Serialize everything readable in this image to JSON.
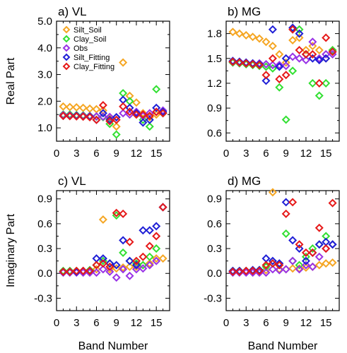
{
  "colors": {
    "Silt_Soil": "#f5a623",
    "Clay_Soil": "#33e033",
    "Obs": "#9933e6",
    "Silt_Fitting": "#1f1fd6",
    "Clay_Fitting": "#e61919"
  },
  "legend": [
    "Silt_Soil",
    "Clay_Soil",
    "Obs",
    "Silt_Fitting",
    "Clay_Fitting"
  ],
  "chart_data": [
    {
      "id": "a",
      "type": "scatter",
      "title": "a) VL",
      "xlabel": "",
      "ylabel": "Real Part",
      "xlim": [
        0,
        17
      ],
      "ylim": [
        0.5,
        5.0
      ],
      "xticks": [
        0,
        3,
        6,
        9,
        12,
        15
      ],
      "yticks": [
        1.0,
        2.0,
        3.0,
        4.0,
        5.0
      ],
      "ytick_labels": [
        "1.0",
        "2.0",
        "3.0",
        "4.0",
        "5.0"
      ],
      "series": [
        {
          "name": "Silt_Soil",
          "x": [
            1,
            2,
            3,
            4,
            5,
            6,
            7,
            8,
            9,
            10,
            11,
            12,
            13,
            14,
            15,
            16
          ],
          "y": [
            1.8,
            1.78,
            1.77,
            1.75,
            1.72,
            1.7,
            1.65,
            1.35,
            1.05,
            3.45,
            2.2,
            1.95,
            1.55,
            1.4,
            1.5,
            1.55
          ]
        },
        {
          "name": "Clay_Soil",
          "x": [
            1,
            2,
            3,
            4,
            5,
            6,
            7,
            8,
            9,
            10,
            11,
            12,
            13,
            14,
            15,
            16
          ],
          "y": [
            1.5,
            1.5,
            1.48,
            1.47,
            1.45,
            1.42,
            1.4,
            1.15,
            0.75,
            2.3,
            2.0,
            1.5,
            1.3,
            1.05,
            2.45,
            1.55
          ]
        },
        {
          "name": "Obs",
          "x": [
            1,
            2,
            3,
            4,
            5,
            6,
            7,
            8,
            9,
            10,
            11,
            12,
            13,
            14,
            15,
            16
          ],
          "y": [
            1.48,
            1.47,
            1.46,
            1.45,
            1.44,
            1.43,
            1.42,
            1.41,
            1.4,
            1.55,
            1.5,
            1.6,
            1.45,
            1.55,
            1.6,
            1.65
          ]
        },
        {
          "name": "Silt_Fitting",
          "x": [
            1,
            2,
            3,
            4,
            5,
            6,
            7,
            8,
            9,
            10,
            11,
            12,
            13,
            14,
            15,
            16
          ],
          "y": [
            1.45,
            1.45,
            1.45,
            1.43,
            1.42,
            1.3,
            1.55,
            1.3,
            1.4,
            2.05,
            1.75,
            1.55,
            1.2,
            1.3,
            1.75,
            1.6
          ]
        },
        {
          "name": "Clay_Fitting",
          "x": [
            1,
            2,
            3,
            4,
            5,
            6,
            7,
            8,
            9,
            10,
            11,
            12,
            13,
            14,
            15,
            16
          ],
          "y": [
            1.45,
            1.44,
            1.43,
            1.42,
            1.4,
            1.3,
            1.85,
            1.25,
            1.3,
            1.8,
            1.6,
            1.5,
            1.5,
            1.45,
            1.6,
            1.55
          ]
        }
      ]
    },
    {
      "id": "b",
      "type": "scatter",
      "title": "b) MG",
      "xlabel": "",
      "ylabel": "",
      "xlim": [
        0,
        17
      ],
      "ylim": [
        0.5,
        1.95
      ],
      "xticks": [
        0,
        3,
        6,
        9,
        12,
        15
      ],
      "yticks": [
        0.6,
        0.9,
        1.2,
        1.5,
        1.8
      ],
      "ytick_labels": [
        "0.6",
        "0.9",
        "1.2",
        "1.5",
        "1.8"
      ],
      "series": [
        {
          "name": "Silt_Soil",
          "x": [
            1,
            2,
            3,
            4,
            5,
            6,
            7,
            8,
            9,
            10,
            11,
            12,
            13,
            14,
            15,
            16
          ],
          "y": [
            1.82,
            1.8,
            1.78,
            1.76,
            1.74,
            1.7,
            1.65,
            1.55,
            1.45,
            1.72,
            1.75,
            1.6,
            1.65,
            1.6,
            1.5,
            1.6
          ]
        },
        {
          "name": "Clay_Soil",
          "x": [
            1,
            2,
            3,
            4,
            5,
            6,
            7,
            8,
            9,
            10,
            11,
            12,
            13,
            14,
            15,
            16
          ],
          "y": [
            1.45,
            1.44,
            1.43,
            1.42,
            1.41,
            1.4,
            1.38,
            1.15,
            0.76,
            1.35,
            1.85,
            1.55,
            1.2,
            1.05,
            1.2,
            1.6
          ]
        },
        {
          "name": "Obs",
          "x": [
            1,
            2,
            3,
            4,
            5,
            6,
            7,
            8,
            9,
            10,
            11,
            12,
            13,
            14,
            15,
            16
          ],
          "y": [
            1.46,
            1.45,
            1.45,
            1.44,
            1.44,
            1.43,
            1.42,
            1.42,
            1.41,
            1.52,
            1.5,
            1.48,
            1.7,
            1.5,
            1.55,
            1.55
          ]
        },
        {
          "name": "Silt_Fitting",
          "x": [
            1,
            2,
            3,
            4,
            5,
            6,
            7,
            8,
            9,
            10,
            11,
            12,
            13,
            14,
            15,
            16
          ],
          "y": [
            1.47,
            1.46,
            1.45,
            1.44,
            1.43,
            1.23,
            1.85,
            1.4,
            1.5,
            1.87,
            1.8,
            1.55,
            1.5,
            1.48,
            1.5,
            1.58
          ]
        },
        {
          "name": "Clay_Fitting",
          "x": [
            1,
            2,
            3,
            4,
            5,
            6,
            7,
            8,
            9,
            10,
            11,
            12,
            13,
            14,
            15,
            16
          ],
          "y": [
            1.46,
            1.45,
            1.44,
            1.43,
            1.42,
            1.3,
            1.5,
            1.25,
            1.3,
            1.85,
            1.6,
            1.55,
            1.55,
            1.2,
            1.75,
            1.58
          ]
        }
      ]
    },
    {
      "id": "c",
      "type": "scatter",
      "title": "c) VL",
      "xlabel": "Band Number",
      "ylabel": "Imaginary Part",
      "xlim": [
        0,
        17
      ],
      "ylim": [
        -0.45,
        1.0
      ],
      "xticks": [
        0,
        3,
        6,
        9,
        12,
        15
      ],
      "yticks": [
        -0.3,
        0.0,
        0.3,
        0.6,
        0.9
      ],
      "ytick_labels": [
        "-0.3",
        "0.0",
        "0.3",
        "0.6",
        "0.9"
      ],
      "series": [
        {
          "name": "Silt_Soil",
          "x": [
            1,
            2,
            3,
            4,
            5,
            6,
            7,
            8,
            9,
            10,
            11,
            12,
            13,
            14,
            15,
            16
          ],
          "y": [
            0.02,
            0.02,
            0.02,
            0.02,
            0.03,
            0.05,
            0.65,
            0.05,
            0.06,
            0.07,
            0.08,
            0.08,
            0.1,
            0.12,
            0.18,
            0.18
          ]
        },
        {
          "name": "Clay_Soil",
          "x": [
            1,
            2,
            3,
            4,
            5,
            6,
            7,
            8,
            9,
            10,
            11,
            12,
            13,
            14,
            15,
            16
          ],
          "y": [
            0.03,
            0.03,
            0.03,
            0.03,
            0.04,
            0.1,
            0.15,
            0.12,
            0.7,
            0.25,
            0.15,
            0.12,
            0.1,
            0.2,
            0.3,
            0.8
          ]
        },
        {
          "name": "Obs",
          "x": [
            1,
            2,
            3,
            4,
            5,
            6,
            7,
            8,
            9,
            10,
            11,
            12,
            13,
            14,
            15,
            16
          ],
          "y": [
            0.01,
            0.01,
            0.01,
            0.01,
            0.01,
            0.01,
            0.05,
            0.02,
            -0.05,
            0.05,
            -0.03,
            0.05,
            0.06,
            0.1,
            0.15,
            0.8
          ]
        },
        {
          "name": "Silt_Fitting",
          "x": [
            1,
            2,
            3,
            4,
            5,
            6,
            7,
            8,
            9,
            10,
            11,
            12,
            13,
            14,
            15,
            16
          ],
          "y": [
            0.02,
            0.02,
            0.02,
            0.03,
            0.03,
            0.18,
            0.18,
            0.12,
            0.1,
            0.4,
            0.15,
            0.1,
            0.52,
            0.52,
            0.57,
            0.8
          ]
        },
        {
          "name": "Clay_Fitting",
          "x": [
            1,
            2,
            3,
            4,
            5,
            6,
            7,
            8,
            9,
            10,
            11,
            12,
            13,
            14,
            15,
            16
          ],
          "y": [
            0.02,
            0.02,
            0.03,
            0.03,
            0.03,
            0.1,
            0.12,
            0.08,
            0.73,
            0.72,
            0.38,
            0.15,
            0.2,
            0.33,
            0.45,
            0.8
          ]
        }
      ]
    },
    {
      "id": "d",
      "type": "scatter",
      "title": "d) MG",
      "xlabel": "Band Number",
      "ylabel": "",
      "xlim": [
        0,
        17
      ],
      "ylim": [
        -0.45,
        1.0
      ],
      "xticks": [
        0,
        3,
        6,
        9,
        12,
        15
      ],
      "yticks": [
        -0.3,
        0.0,
        0.3,
        0.6,
        0.9
      ],
      "ytick_labels": [
        "-0.3",
        "0.0",
        "0.3",
        "0.6",
        "0.9"
      ],
      "series": [
        {
          "name": "Silt_Soil",
          "x": [
            1,
            2,
            3,
            4,
            5,
            6,
            7,
            8,
            9,
            10,
            11,
            12,
            13,
            14,
            15,
            16
          ],
          "y": [
            0.02,
            0.02,
            0.02,
            0.02,
            0.03,
            0.04,
            0.98,
            0.05,
            0.05,
            0.06,
            0.06,
            0.07,
            0.08,
            0.1,
            0.12,
            0.13
          ]
        },
        {
          "name": "Clay_Soil",
          "x": [
            1,
            2,
            3,
            4,
            5,
            6,
            7,
            8,
            9,
            10,
            11,
            12,
            13,
            14,
            15,
            16
          ],
          "y": [
            0.03,
            0.03,
            0.03,
            0.03,
            0.04,
            0.08,
            0.12,
            0.1,
            0.48,
            0.15,
            0.1,
            0.2,
            0.3,
            0.35,
            0.45,
            0.35
          ]
        },
        {
          "name": "Obs",
          "x": [
            1,
            2,
            3,
            4,
            5,
            6,
            7,
            8,
            9,
            10,
            11,
            12,
            13,
            14,
            15,
            16
          ],
          "y": [
            0.01,
            0.01,
            0.01,
            0.01,
            0.01,
            0.01,
            0.05,
            0.04,
            0.05,
            0.15,
            0.05,
            0.1,
            0.08,
            0.2,
            0.3,
            0.35
          ]
        },
        {
          "name": "Silt_Fitting",
          "x": [
            1,
            2,
            3,
            4,
            5,
            6,
            7,
            8,
            9,
            10,
            11,
            12,
            13,
            14,
            15,
            16
          ],
          "y": [
            0.03,
            0.03,
            0.03,
            0.04,
            0.04,
            0.18,
            0.15,
            0.12,
            0.86,
            0.4,
            0.3,
            0.15,
            0.25,
            0.35,
            0.38,
            0.35
          ]
        },
        {
          "name": "Clay_Fitting",
          "x": [
            1,
            2,
            3,
            4,
            5,
            6,
            7,
            8,
            9,
            10,
            11,
            12,
            13,
            14,
            15,
            16
          ],
          "y": [
            0.02,
            0.02,
            0.03,
            0.03,
            0.03,
            0.1,
            0.12,
            0.1,
            0.72,
            0.86,
            0.35,
            0.25,
            0.25,
            0.55,
            0.3,
            0.85
          ]
        }
      ]
    }
  ]
}
